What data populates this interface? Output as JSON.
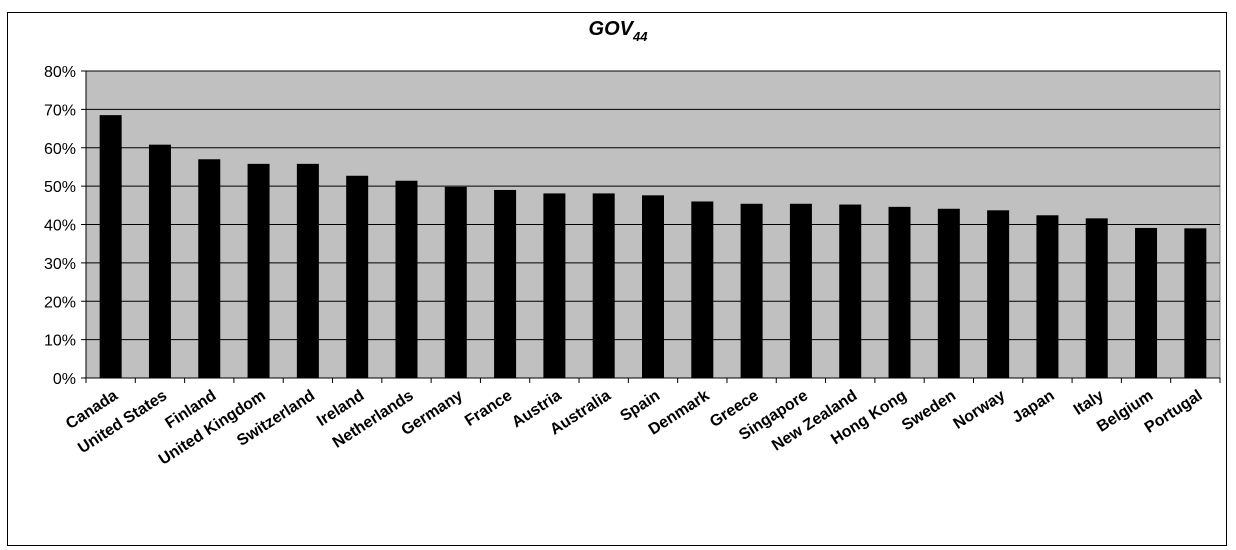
{
  "chart_data": {
    "type": "bar",
    "title": "GOV",
    "title_subscript": "44",
    "categories": [
      "Canada",
      "United States",
      "Finland",
      "United Kingdom",
      "Switzerland",
      "Ireland",
      "Netherlands",
      "Germany",
      "France",
      "Austria",
      "Australia",
      "Spain",
      "Denmark",
      "Greece",
      "Singapore",
      "New Zealand",
      "Hong Kong",
      "Sweden",
      "Norway",
      "Japan",
      "Italy",
      "Belgium",
      "Portugal"
    ],
    "values": [
      68.5,
      60.8,
      57.0,
      55.8,
      55.8,
      52.7,
      51.4,
      49.8,
      49.0,
      48.1,
      48.1,
      47.6,
      46.0,
      45.4,
      45.4,
      45.2,
      44.6,
      44.1,
      43.7,
      42.4,
      41.6,
      39.1,
      39.0
    ],
    "ylim": [
      0,
      80
    ],
    "yticks": [
      "0%",
      "10%",
      "20%",
      "30%",
      "40%",
      "50%",
      "60%",
      "70%",
      "80%"
    ],
    "xlabel": "",
    "ylabel": "",
    "grid": true,
    "legend": "none",
    "colors": {
      "bar": "#000000",
      "plot_background": "#c0c0c0",
      "gridline": "#000000"
    }
  }
}
